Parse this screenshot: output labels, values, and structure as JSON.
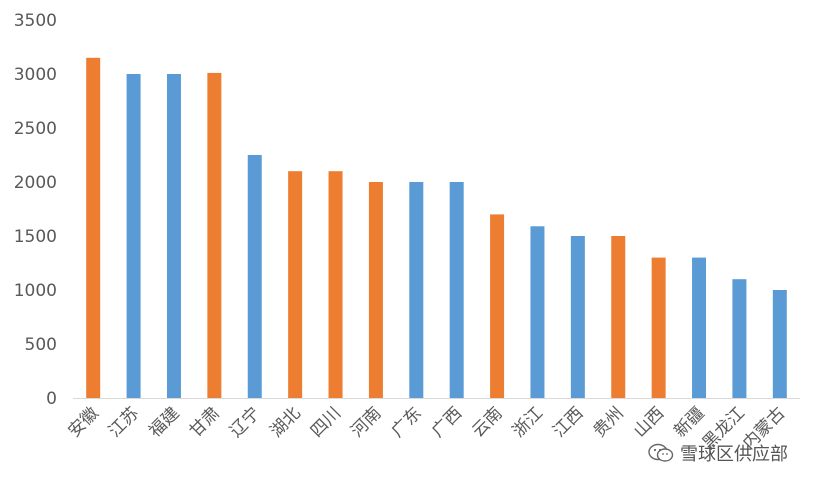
{
  "chart_data": {
    "type": "bar",
    "categories": [
      "安徽",
      "江苏",
      "福建",
      "甘肃",
      "辽宁",
      "湖北",
      "四川",
      "河南",
      "广东",
      "广西",
      "云南",
      "浙江",
      "江西",
      "贵州",
      "山西",
      "新疆",
      "黑龙江",
      "内蒙古"
    ],
    "values": [
      3150,
      3000,
      3000,
      3010,
      2250,
      2100,
      2100,
      2000,
      2000,
      2000,
      1700,
      1590,
      1500,
      1500,
      1300,
      1300,
      1100,
      1000
    ],
    "colors": [
      "#ED7D31",
      "#5B9BD5",
      "#5B9BD5",
      "#ED7D31",
      "#5B9BD5",
      "#ED7D31",
      "#ED7D31",
      "#ED7D31",
      "#5B9BD5",
      "#5B9BD5",
      "#ED7D31",
      "#5B9BD5",
      "#5B9BD5",
      "#ED7D31",
      "#ED7D31",
      "#5B9BD5",
      "#5B9BD5",
      "#5B9BD5"
    ],
    "ylim": [
      0,
      3500
    ],
    "yticks": [
      0,
      500,
      1000,
      1500,
      2000,
      2500,
      3000,
      3500
    ],
    "grid": false,
    "title": "",
    "xlabel": "",
    "ylabel": ""
  },
  "watermark": {
    "text": "雪球区供应部",
    "icon": "wechat-icon"
  }
}
